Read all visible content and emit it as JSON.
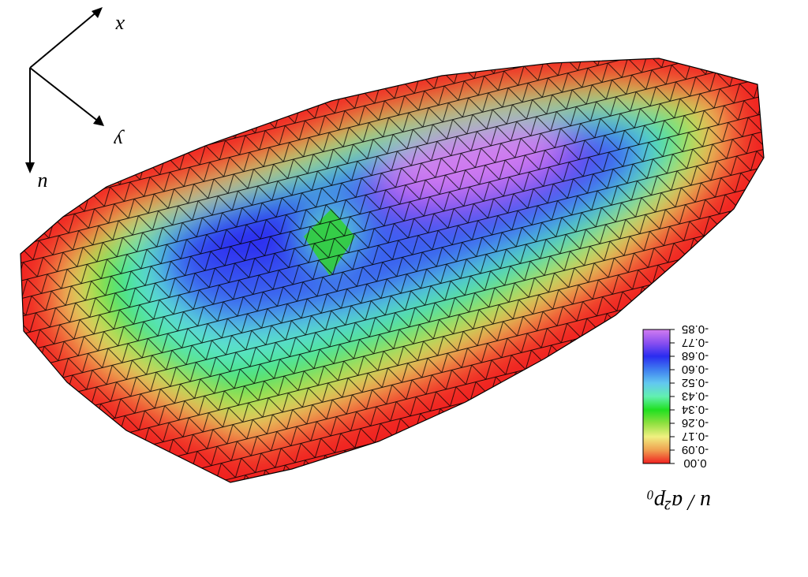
{
  "axes": {
    "x_label": "x",
    "y_label": "y",
    "z_label": "u"
  },
  "colorbar": {
    "title": "u / a²p₀",
    "ticks": [
      "-0.85",
      "-0.77",
      "-0.68",
      "-0.60",
      "-0.52",
      "-0.43",
      "-0.34",
      "-0.26",
      "-0.17",
      "-0.09",
      "0.00"
    ],
    "colors": [
      "#d27cf0",
      "#8a4ff0",
      "#2a2cf0",
      "#3f7ef0",
      "#62c8f0",
      "#62f0b0",
      "#20e020",
      "#8fe040",
      "#f0f080",
      "#f0a050",
      "#f02020"
    ]
  }
}
